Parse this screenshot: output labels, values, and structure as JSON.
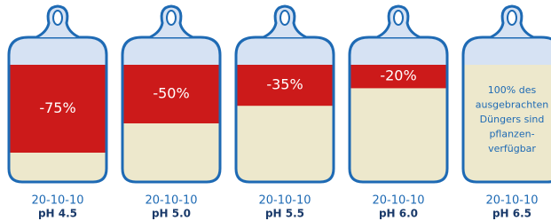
{
  "chart_data": {
    "type": "bag",
    "categories": [
      "pH 4.5",
      "pH 5.0",
      "pH 5.5",
      "pH 6.0",
      "pH 6.5"
    ],
    "products": [
      "20-10-10",
      "20-10-10",
      "20-10-10",
      "20-10-10",
      "20-10-10"
    ],
    "values": [
      -75,
      -50,
      -35,
      -20,
      null
    ],
    "value_labels": [
      "-75%",
      "-50%",
      "-35%",
      "-20%",
      null
    ],
    "ylim": [
      -100,
      0
    ],
    "color": "#cc1a1a",
    "annotation": {
      "category": 4,
      "lines": [
        "100% des",
        "ausgebrachten",
        "Düngers sind",
        "pflanzen-",
        "verfügbar"
      ]
    }
  }
}
